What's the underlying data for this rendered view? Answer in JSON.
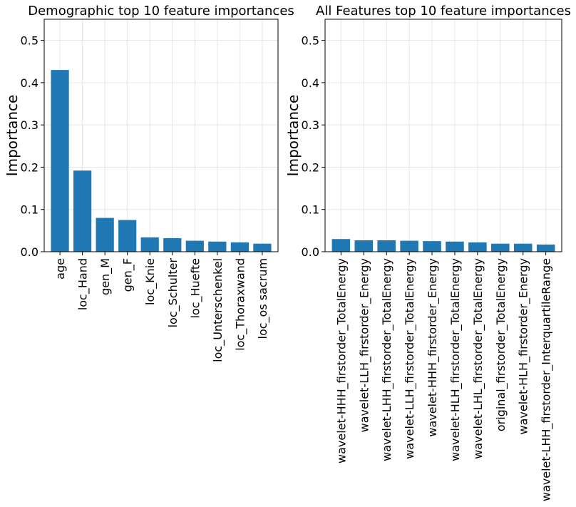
{
  "chart_data": [
    {
      "type": "bar",
      "title": "Demographic top 10 feature importances",
      "xlabel": "",
      "ylabel": "Importance",
      "ylim": [
        0,
        0.55
      ],
      "yticks": [
        "0.0",
        "0.1",
        "0.2",
        "0.3",
        "0.4",
        "0.5"
      ],
      "grid": true,
      "color": "#1f77b4",
      "categories": [
        "age",
        "loc_Hand",
        "gen_M",
        "gen_F",
        "loc_Knie",
        "loc_Schulter",
        "loc_Huefte",
        "loc_Unterschenkel",
        "loc_Thoraxwand",
        "loc_os sacrum"
      ],
      "values": [
        0.43,
        0.192,
        0.08,
        0.075,
        0.034,
        0.032,
        0.026,
        0.024,
        0.022,
        0.019
      ]
    },
    {
      "type": "bar",
      "title": "All Features top 10 feature importances",
      "xlabel": "",
      "ylabel": "Importance",
      "ylim": [
        0,
        0.55
      ],
      "yticks": [
        "0.0",
        "0.1",
        "0.2",
        "0.3",
        "0.4",
        "0.5"
      ],
      "grid": true,
      "color": "#1f77b4",
      "categories": [
        "wavelet-HHH_firstorder_TotalEnergy",
        "wavelet-LLH_firstorder_Energy",
        "wavelet-LHH_firstorder_TotalEnergy",
        "wavelet-LLH_firstorder_TotalEnergy",
        "wavelet-HHH_firstorder_Energy",
        "wavelet-HLH_firstorder_TotalEnergy",
        "wavelet-LHL_firstorder_TotalEnergy",
        "original_firstorder_TotalEnergy",
        "wavelet-HLH_firstorder_Energy",
        "wavelet-LHH_firstorder_InterquartileRange"
      ],
      "values": [
        0.03,
        0.027,
        0.027,
        0.026,
        0.025,
        0.024,
        0.022,
        0.019,
        0.019,
        0.017
      ]
    }
  ]
}
